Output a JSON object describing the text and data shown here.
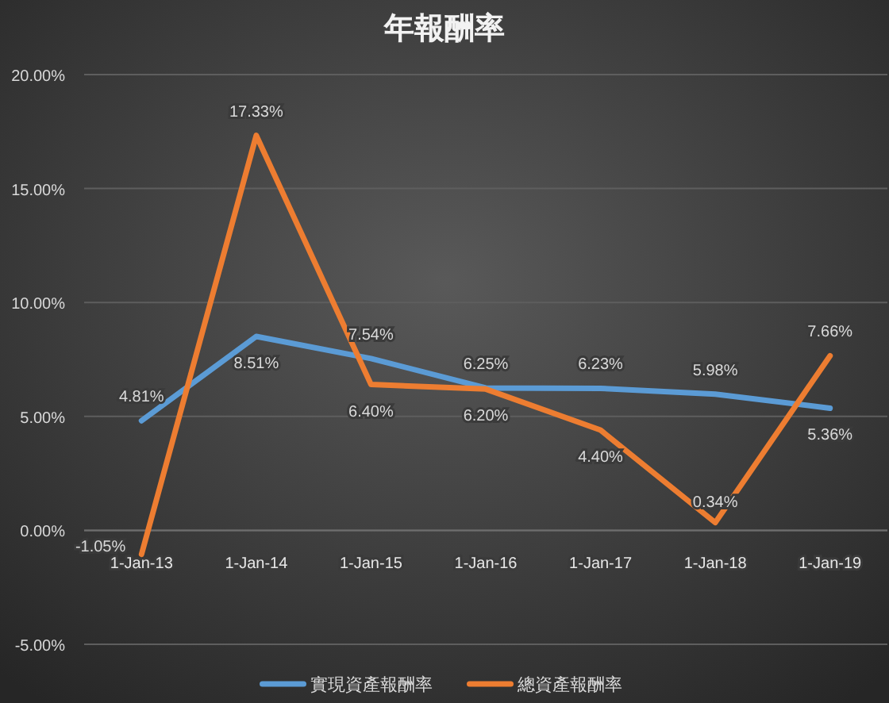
{
  "chart_data": {
    "type": "line",
    "title": "年報酬率",
    "categories": [
      "1-Jan-13",
      "1-Jan-14",
      "1-Jan-15",
      "1-Jan-16",
      "1-Jan-17",
      "1-Jan-18",
      "1-Jan-19"
    ],
    "series": [
      {
        "name": "實現資產報酬率",
        "color": "#5b9bd5",
        "values": [
          4.81,
          8.51,
          7.54,
          6.25,
          6.23,
          5.98,
          5.36
        ],
        "value_labels": [
          "4.81%",
          "8.51%",
          "7.54%",
          "6.25%",
          "6.23%",
          "5.98%",
          "5.36%"
        ]
      },
      {
        "name": "總資產報酬率",
        "color": "#ed7d31",
        "values": [
          -1.05,
          17.33,
          6.4,
          6.2,
          4.4,
          0.34,
          7.66
        ],
        "value_labels": [
          "-1.05%",
          "17.33%",
          "6.40%",
          "6.20%",
          "4.40%",
          "0.34%",
          "7.66%"
        ]
      }
    ],
    "ylim": [
      -5,
      20
    ],
    "yticks": [
      {
        "value": -5,
        "label": "-5.00%"
      },
      {
        "value": 0,
        "label": "0.00%"
      },
      {
        "value": 5,
        "label": "5.00%"
      },
      {
        "value": 10,
        "label": "10.00%"
      },
      {
        "value": 15,
        "label": "15.00%"
      },
      {
        "value": 20,
        "label": "20.00%"
      }
    ],
    "grid": "y",
    "legend": "bottom",
    "marker": "none",
    "line_style": "solid"
  }
}
